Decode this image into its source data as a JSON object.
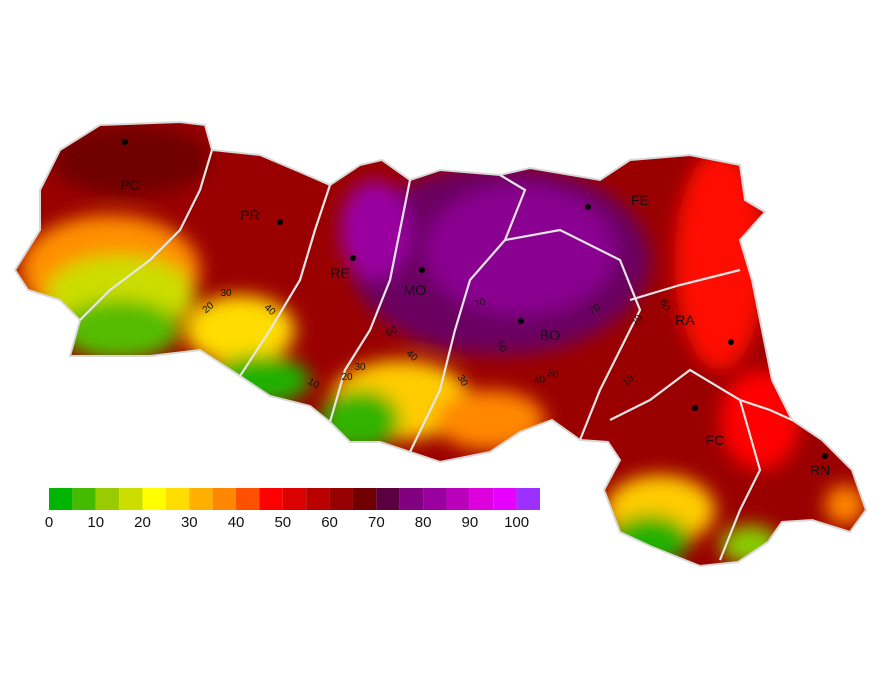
{
  "provinces": [
    {
      "label": "PC"
    },
    {
      "label": "PR"
    },
    {
      "label": "RE"
    },
    {
      "label": "MO"
    },
    {
      "label": "BO"
    },
    {
      "label": "FE"
    },
    {
      "label": "RA"
    },
    {
      "label": "FC"
    },
    {
      "label": "RN"
    }
  ],
  "contour_labels": [
    20,
    30,
    40,
    10,
    20,
    30,
    60,
    40,
    30,
    70,
    50,
    40,
    50,
    70,
    10,
    60,
    70
  ],
  "legend": {
    "colors": [
      "#00b400",
      "#44bb00",
      "#99cc00",
      "#ccdd00",
      "#ffff00",
      "#ffdd00",
      "#ffb000",
      "#ff8800",
      "#ff5000",
      "#ff0000",
      "#dd0000",
      "#b80000",
      "#960000",
      "#700000",
      "#5a0040",
      "#800080",
      "#9a00a0",
      "#bb00bb",
      "#dd00dd",
      "#e600ff",
      "#9b30ff"
    ],
    "range": [
      0,
      105
    ],
    "ticks": [
      0,
      10,
      20,
      30,
      40,
      50,
      60,
      70,
      80,
      90,
      100
    ]
  }
}
